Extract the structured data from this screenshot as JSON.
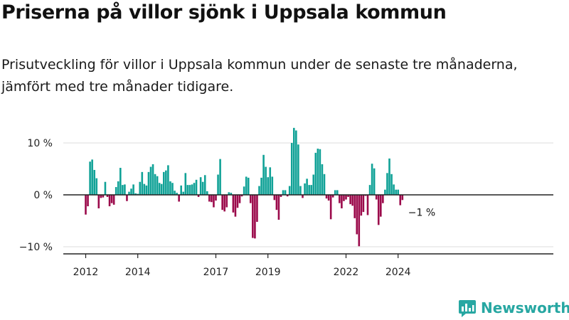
{
  "title": "Priserna på villor sjönk i Uppsala kommun",
  "subtitle": "Prisutveckling för villor i Uppsala kommun under de senaste tre månaderna, jämfört med tre månader tidigare.",
  "logo": {
    "text": "Newsworthy",
    "icon": "bar-chart-speech-bubble-icon",
    "color": "#27a7a2"
  },
  "colors": {
    "positive": "#11a297",
    "negative": "#9b0a4b",
    "grid": "#dddddd",
    "axis": "#222222"
  },
  "chart_data": {
    "type": "bar",
    "unit": "%",
    "ylim": [
      -10.5,
      13
    ],
    "yticks": [
      {
        "value": 10,
        "label": "10 %"
      },
      {
        "value": 0,
        "label": "0 %"
      },
      {
        "value": -10,
        "label": "−10 %"
      }
    ],
    "xticks": [
      {
        "value": 2012.0,
        "label": "2012"
      },
      {
        "value": 2014.0,
        "label": "2014"
      },
      {
        "value": 2017.0,
        "label": "2017"
      },
      {
        "value": 2019.0,
        "label": "2019"
      },
      {
        "value": 2022.0,
        "label": "2022"
      },
      {
        "value": 2024.0,
        "label": "2024"
      }
    ],
    "x_start": 2012.0,
    "x_step_months": 1,
    "end_label": "−1 %",
    "grid": true,
    "values": [
      -3.8,
      -2.2,
      6.4,
      6.8,
      4.8,
      3.2,
      -2.6,
      -0.6,
      -0.5,
      2.5,
      -0.4,
      -2.2,
      -1.6,
      -1.9,
      1.5,
      2.6,
      5.2,
      1.9,
      2.0,
      -1.2,
      0.6,
      1.2,
      2.0,
      0.3,
      0.2,
      2.5,
      4.4,
      2.1,
      1.8,
      4.4,
      5.4,
      5.9,
      4.0,
      3.6,
      2.3,
      2.1,
      4.4,
      4.7,
      5.7,
      2.6,
      2.3,
      0.8,
      0.4,
      -1.3,
      1.8,
      0.6,
      4.2,
      1.9,
      1.9,
      2.0,
      2.3,
      2.9,
      -0.4,
      3.4,
      2.5,
      3.8,
      0.7,
      -1.3,
      -1.4,
      -2.4,
      -1.1,
      3.9,
      6.9,
      -2.9,
      -3.2,
      -2.4,
      0.5,
      0.4,
      -3.4,
      -4.2,
      -2.5,
      -1.6,
      -0.3,
      1.6,
      3.5,
      3.3,
      -1.6,
      -8.3,
      -8.4,
      -5.2,
      1.7,
      3.3,
      7.7,
      5.4,
      3.4,
      5.3,
      3.5,
      -1.0,
      -2.9,
      -4.8,
      -0.4,
      0.9,
      0.9,
      -0.3,
      1.7,
      10.0,
      12.9,
      12.4,
      9.7,
      1.7,
      -0.6,
      2.2,
      3.1,
      1.9,
      1.9,
      3.9,
      8.1,
      8.9,
      8.8,
      5.9,
      4.0,
      -0.7,
      -1.1,
      -4.7,
      -0.5,
      0.9,
      0.9,
      -1.6,
      -2.6,
      -1.2,
      -0.9,
      -0.4,
      -1.8,
      -2.1,
      -4.5,
      -7.6,
      -9.9,
      -4.0,
      -3.3,
      -0.2,
      -3.9,
      1.9,
      6.0,
      5.1,
      -0.9,
      -5.8,
      -4.2,
      -1.6,
      1.0,
      4.2,
      7.0,
      4.0,
      2.0,
      1.0,
      1.0,
      -2.0,
      -1.0
    ]
  }
}
